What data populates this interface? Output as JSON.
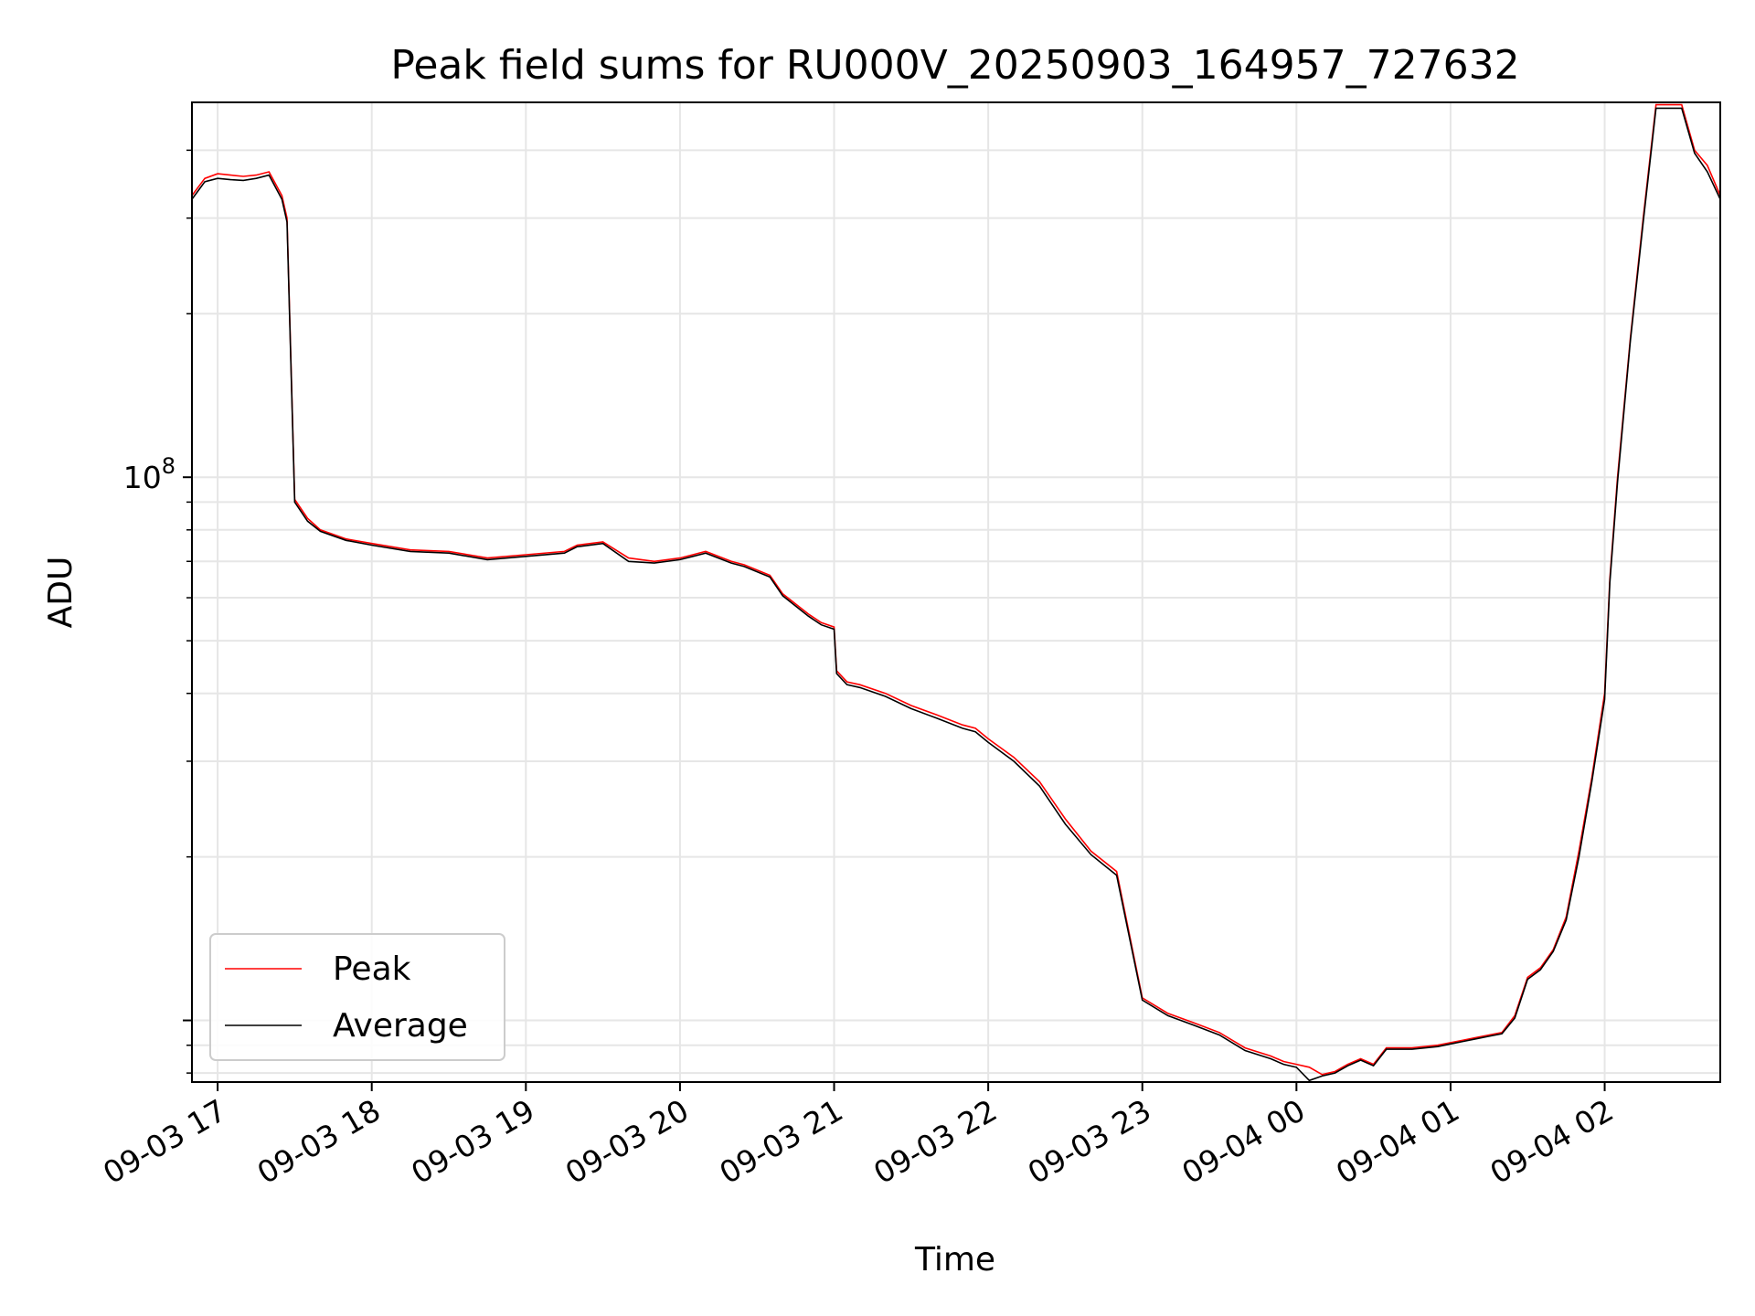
{
  "chart_data": {
    "type": "line",
    "title": "Peak field sums for RU000V_20250903_164957_727632",
    "xlabel": "Time",
    "ylabel": "ADU",
    "y_scale": "log",
    "y_major_tick_label": {
      "base": "10",
      "exp": "8"
    },
    "y_major_tick_value": 100000000,
    "xlim": [
      "09-03 16:50",
      "09-04 02:45"
    ],
    "ylim": [
      7700000,
      490000000
    ],
    "x_tick_labels": [
      "09-03 17",
      "09-03 18",
      "09-03 19",
      "09-03 20",
      "09-03 21",
      "09-03 22",
      "09-03 23",
      "09-04 00",
      "09-04 01",
      "09-04 02"
    ],
    "grid": true,
    "legend": {
      "placement": "lower-left"
    },
    "colors": {
      "peak": "#ff0000",
      "average": "#000000",
      "grid": "#e6e6e6"
    },
    "series": [
      {
        "name": "Peak",
        "x": [
          "09-03 16:50",
          "09-03 16:55",
          "09-03 17:00",
          "09-03 17:05",
          "09-03 17:10",
          "09-03 17:15",
          "09-03 17:20",
          "09-03 17:25",
          "09-03 17:27",
          "09-03 17:30",
          "09-03 17:35",
          "09-03 17:40",
          "09-03 17:50",
          "09-03 18:00",
          "09-03 18:15",
          "09-03 18:30",
          "09-03 18:45",
          "09-03 19:00",
          "09-03 19:15",
          "09-03 19:20",
          "09-03 19:30",
          "09-03 19:40",
          "09-03 19:50",
          "09-03 20:00",
          "09-03 20:05",
          "09-03 20:10",
          "09-03 20:20",
          "09-03 20:25",
          "09-03 20:35",
          "09-03 20:40",
          "09-03 20:50",
          "09-03 20:55",
          "09-03 21:00",
          "09-03 21:01",
          "09-03 21:05",
          "09-03 21:10",
          "09-03 21:20",
          "09-03 21:30",
          "09-03 21:40",
          "09-03 21:50",
          "09-03 21:55",
          "09-03 22:00",
          "09-03 22:10",
          "09-03 22:20",
          "09-03 22:30",
          "09-03 22:40",
          "09-03 22:50",
          "09-03 23:00",
          "09-03 23:10",
          "09-03 23:20",
          "09-03 23:30",
          "09-03 23:40",
          "09-03 23:50",
          "09-03 23:55",
          "09-04 00:00",
          "09-04 00:05",
          "09-04 00:10",
          "09-04 00:15",
          "09-04 00:20",
          "09-04 00:25",
          "09-04 00:30",
          "09-04 00:35",
          "09-04 00:45",
          "09-04 00:55",
          "09-04 01:00",
          "09-04 01:05",
          "09-04 01:10",
          "09-04 01:15",
          "09-04 01:20",
          "09-04 01:25",
          "09-04 01:30",
          "09-04 01:35",
          "09-04 01:40",
          "09-04 01:45",
          "09-04 01:50",
          "09-04 01:55",
          "09-04 02:00",
          "09-04 02:02",
          "09-04 02:05",
          "09-04 02:10",
          "09-04 02:15",
          "09-04 02:20",
          "09-04 02:25",
          "09-04 02:30",
          "09-04 02:35",
          "09-04 02:40",
          "09-04 02:45"
        ],
        "y": [
          330000000,
          355000000,
          362000000,
          360000000,
          358000000,
          360000000,
          365000000,
          330000000,
          300000000,
          91000000,
          84000000,
          80000000,
          77000000,
          75500000,
          73500000,
          73000000,
          71000000,
          72000000,
          73000000,
          75000000,
          76000000,
          71000000,
          70000000,
          71000000,
          72000000,
          73000000,
          70000000,
          69000000,
          66000000,
          61000000,
          56000000,
          54000000,
          53000000,
          44000000,
          42000000,
          41500000,
          40000000,
          38000000,
          36500000,
          35000000,
          34500000,
          33000000,
          30500000,
          27500000,
          23500000,
          20500000,
          18800000,
          11000000,
          10300000,
          9900000,
          9500000,
          8900000,
          8600000,
          8400000,
          8300000,
          8200000,
          7950000,
          8050000,
          8300000,
          8500000,
          8300000,
          8900000,
          8900000,
          9000000,
          9100000,
          9200000,
          9300000,
          9400000,
          9500000,
          10200000,
          12000000,
          12500000,
          13500000,
          15500000,
          20500000,
          28000000,
          40000000,
          65000000,
          100000000,
          180000000,
          300000000,
          485000000,
          485000000,
          485000000,
          400000000,
          375000000,
          330000000
        ]
      },
      {
        "name": "Average",
        "x": [
          "09-03 16:50",
          "09-03 16:55",
          "09-03 17:00",
          "09-03 17:05",
          "09-03 17:10",
          "09-03 17:15",
          "09-03 17:20",
          "09-03 17:25",
          "09-03 17:27",
          "09-03 17:30",
          "09-03 17:35",
          "09-03 17:40",
          "09-03 17:50",
          "09-03 18:00",
          "09-03 18:15",
          "09-03 18:30",
          "09-03 18:45",
          "09-03 19:00",
          "09-03 19:15",
          "09-03 19:20",
          "09-03 19:30",
          "09-03 19:40",
          "09-03 19:50",
          "09-03 20:00",
          "09-03 20:05",
          "09-03 20:10",
          "09-03 20:20",
          "09-03 20:25",
          "09-03 20:35",
          "09-03 20:40",
          "09-03 20:50",
          "09-03 20:55",
          "09-03 21:00",
          "09-03 21:01",
          "09-03 21:05",
          "09-03 21:10",
          "09-03 21:20",
          "09-03 21:30",
          "09-03 21:40",
          "09-03 21:50",
          "09-03 21:55",
          "09-03 22:00",
          "09-03 22:10",
          "09-03 22:20",
          "09-03 22:30",
          "09-03 22:40",
          "09-03 22:50",
          "09-03 23:00",
          "09-03 23:10",
          "09-03 23:20",
          "09-03 23:30",
          "09-03 23:40",
          "09-03 23:50",
          "09-03 23:55",
          "09-04 00:00",
          "09-04 00:05",
          "09-04 00:10",
          "09-04 00:15",
          "09-04 00:20",
          "09-04 00:25",
          "09-04 00:30",
          "09-04 00:35",
          "09-04 00:45",
          "09-04 00:55",
          "09-04 01:00",
          "09-04 01:05",
          "09-04 01:10",
          "09-04 01:15",
          "09-04 01:20",
          "09-04 01:25",
          "09-04 01:30",
          "09-04 01:35",
          "09-04 01:40",
          "09-04 01:45",
          "09-04 01:50",
          "09-04 01:55",
          "09-04 02:00",
          "09-04 02:02",
          "09-04 02:05",
          "09-04 02:10",
          "09-04 02:15",
          "09-04 02:20",
          "09-04 02:25",
          "09-04 02:30",
          "09-04 02:35",
          "09-04 02:40",
          "09-04 02:45"
        ],
        "y": [
          325000000,
          350000000,
          355000000,
          353000000,
          352000000,
          355000000,
          360000000,
          325000000,
          295000000,
          90000000,
          83000000,
          79500000,
          76500000,
          75000000,
          73000000,
          72500000,
          70500000,
          71500000,
          72500000,
          74500000,
          75500000,
          70000000,
          69500000,
          70500000,
          71500000,
          72500000,
          69500000,
          68500000,
          65500000,
          60500000,
          55500000,
          53500000,
          52500000,
          43500000,
          41500000,
          41000000,
          39500000,
          37500000,
          36000000,
          34500000,
          34000000,
          32500000,
          30000000,
          27000000,
          23000000,
          20200000,
          18500000,
          10900000,
          10200000,
          9800000,
          9400000,
          8800000,
          8500000,
          8300000,
          8200000,
          7750000,
          7900000,
          8000000,
          8250000,
          8450000,
          8250000,
          8850000,
          8850000,
          8950000,
          9050000,
          9150000,
          9250000,
          9350000,
          9450000,
          10100000,
          11900000,
          12400000,
          13400000,
          15300000,
          20000000,
          27500000,
          39000000,
          64000000,
          98000000,
          178000000,
          295000000,
          478000000,
          478000000,
          478000000,
          395000000,
          365000000,
          325000000
        ]
      }
    ]
  }
}
